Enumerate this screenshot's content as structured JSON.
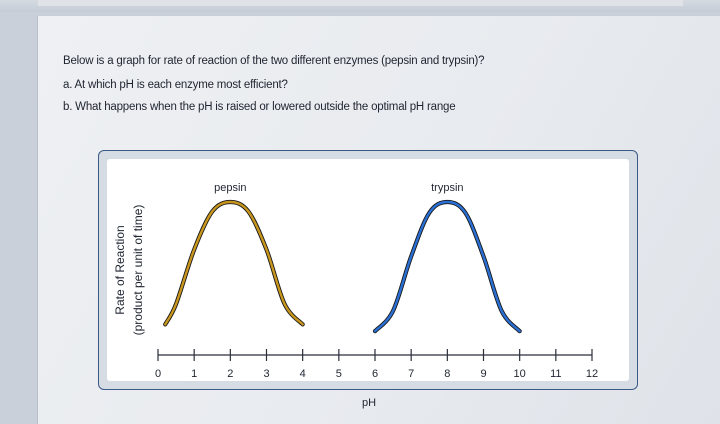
{
  "question": {
    "line1": "Below is a graph for rate of reaction of the two different enzymes (pepsin and trypsin)?",
    "line2": "a. At which pH is each enzyme most efficient?",
    "line3": "b. What happens when the pH is raised or lowered outside the optimal pH range"
  },
  "chart_data": {
    "type": "line",
    "xlabel": "pH",
    "ylabel": "Rate of Reaction",
    "ylabel_sub": "(product per unit of time)",
    "xlim": [
      0,
      12
    ],
    "ylim": [
      0,
      1
    ],
    "xticks": [
      "0",
      "1",
      "2",
      "3",
      "4",
      "5",
      "6",
      "7",
      "8",
      "9",
      "10",
      "11",
      "12"
    ],
    "grid": false,
    "series": [
      {
        "name": "pepsin",
        "color": "#c8961c",
        "x": [
          0.2,
          0.5,
          1.0,
          1.5,
          2.0,
          2.5,
          3.0,
          3.5,
          4.0
        ],
        "y": [
          0.1,
          0.25,
          0.65,
          0.93,
          1.0,
          0.93,
          0.65,
          0.25,
          0.1
        ]
      },
      {
        "name": "trypsin",
        "color": "#2a6fd4",
        "x": [
          6.0,
          6.5,
          7.0,
          7.5,
          8.0,
          8.5,
          9.0,
          9.5,
          10.0
        ],
        "y": [
          0.05,
          0.2,
          0.6,
          0.92,
          1.0,
          0.92,
          0.6,
          0.2,
          0.05
        ]
      }
    ]
  }
}
